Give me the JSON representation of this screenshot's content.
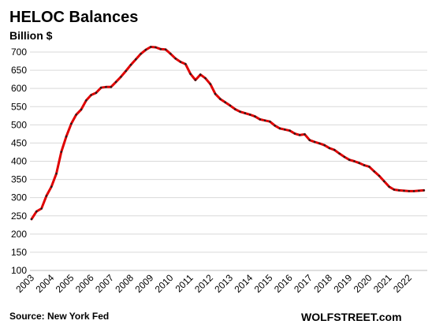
{
  "chart_data": {
    "type": "line",
    "title": "HELOC Balances",
    "ylabel": "Billion $",
    "xlabel": "",
    "ylim": [
      100,
      700
    ],
    "yticks": [
      100,
      150,
      200,
      250,
      300,
      350,
      400,
      450,
      500,
      550,
      600,
      650,
      700
    ],
    "xticks": [
      "2003",
      "2004",
      "2005",
      "2006",
      "2007",
      "2008",
      "2009",
      "2010",
      "2011",
      "2012",
      "2013",
      "2014",
      "2015",
      "2016",
      "2017",
      "2018",
      "2019",
      "2020",
      "2021",
      "2022"
    ],
    "grid": true,
    "line_color": "#e00000",
    "marker_color": "#222222",
    "series": [
      {
        "x": [
          "2003 Q1",
          "2003 Q2",
          "2003 Q3",
          "2003 Q4",
          "2004 Q1",
          "2004 Q2",
          "2004 Q3",
          "2004 Q4",
          "2005 Q1",
          "2005 Q2",
          "2005 Q3",
          "2005 Q4",
          "2006 Q1",
          "2006 Q2",
          "2006 Q3",
          "2006 Q4",
          "2007 Q1",
          "2007 Q2",
          "2007 Q3",
          "2007 Q4",
          "2008 Q1",
          "2008 Q2",
          "2008 Q3",
          "2008 Q4",
          "2009 Q1",
          "2009 Q2",
          "2009 Q3",
          "2009 Q4",
          "2010 Q1",
          "2010 Q2",
          "2010 Q3",
          "2010 Q4",
          "2011 Q1",
          "2011 Q2",
          "2011 Q3",
          "2011 Q4",
          "2012 Q1",
          "2012 Q2",
          "2012 Q3",
          "2012 Q4",
          "2013 Q1",
          "2013 Q2",
          "2013 Q3",
          "2013 Q4",
          "2014 Q1",
          "2014 Q2",
          "2014 Q3",
          "2014 Q4",
          "2015 Q1",
          "2015 Q2",
          "2015 Q3",
          "2015 Q4",
          "2016 Q1",
          "2016 Q2",
          "2016 Q3",
          "2016 Q4",
          "2017 Q1",
          "2017 Q2",
          "2017 Q3",
          "2017 Q4",
          "2018 Q1",
          "2018 Q2",
          "2018 Q3",
          "2018 Q4",
          "2019 Q1",
          "2019 Q2",
          "2019 Q3",
          "2019 Q4",
          "2020 Q1",
          "2020 Q2",
          "2020 Q3",
          "2020 Q4",
          "2021 Q1",
          "2021 Q2",
          "2021 Q3",
          "2021 Q4",
          "2022 Q1",
          "2022 Q2",
          "2022 Q3",
          "2022 Q4"
        ],
        "values": [
          241,
          262,
          270,
          305,
          330,
          366,
          426,
          468,
          503,
          528,
          542,
          567,
          582,
          588,
          602,
          604,
          604,
          618,
          632,
          648,
          665,
          680,
          695,
          706,
          714,
          713,
          708,
          707,
          695,
          682,
          673,
          667,
          640,
          623,
          638,
          628,
          612,
          585,
          571,
          562,
          553,
          543,
          536,
          532,
          528,
          523,
          515,
          512,
          509,
          498,
          490,
          487,
          484,
          476,
          472,
          474,
          458,
          453,
          449,
          444,
          436,
          431,
          421,
          412,
          404,
          400,
          395,
          389,
          385,
          372,
          360,
          345,
          330,
          322,
          320,
          319,
          318,
          318,
          319,
          320
        ]
      }
    ],
    "source": "Source: New York Fed",
    "brand": "WOLFSTREET.com"
  }
}
